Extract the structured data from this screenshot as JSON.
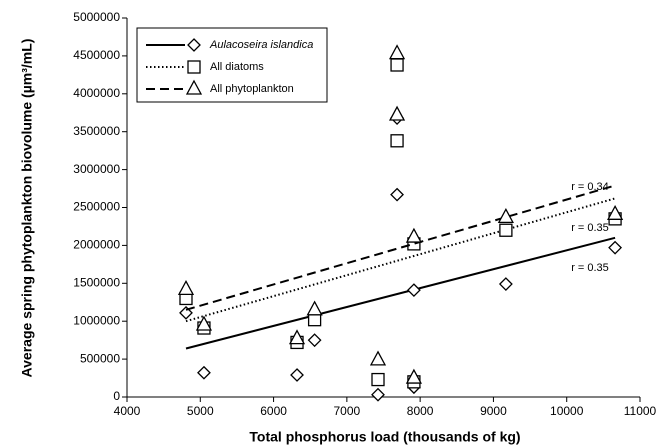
{
  "chart_data": {
    "type": "scatter",
    "x_label": "Total phosphorus load (thousands of kg)",
    "y_label": "Average spring phytoplankton biovolume (µm³/mL)",
    "xlim": [
      4000,
      11000
    ],
    "xticks": [
      4000,
      5000,
      6000,
      7000,
      8000,
      9000,
      10000,
      11000
    ],
    "ylim": [
      0,
      5000000
    ],
    "yticks": [
      0,
      500000,
      1000000,
      1500000,
      2000000,
      2500000,
      3000000,
      3500000,
      4000000,
      4500000,
      5000000
    ],
    "legend": "top-left",
    "series": [
      {
        "name": "Aulacoseira islandica",
        "marker": "diamond",
        "line": "solid",
        "color": "#000000",
        "x": [
          4805,
          5050,
          6320,
          6560,
          7425,
          7685,
          7685,
          7915,
          7915,
          9170,
          10660
        ],
        "values": [
          1110000,
          320000,
          290000,
          750000,
          30000,
          3680000,
          2670000,
          1410000,
          130000,
          1490000,
          1970000
        ],
        "trend": {
          "x": [
            4805,
            10660
          ],
          "y": [
            640000,
            2100000
          ],
          "label": "r = 0.35"
        }
      },
      {
        "name": "All diatoms",
        "marker": "square",
        "line": "dotted",
        "color": "#000000",
        "x": [
          4805,
          5050,
          6320,
          6560,
          7425,
          7685,
          7685,
          7915,
          7915,
          9170,
          10660
        ],
        "values": [
          1300000,
          910000,
          720000,
          1020000,
          230000,
          4380000,
          3380000,
          2020000,
          200000,
          2200000,
          2350000
        ],
        "trend": {
          "x": [
            4805,
            10660
          ],
          "y": [
            1000000,
            2620000
          ],
          "label": "r = 0.35"
        }
      },
      {
        "name": "All phytoplankton",
        "marker": "triangle",
        "line": "dashed",
        "color": "#000000",
        "x": [
          4805,
          5050,
          6320,
          6560,
          7425,
          7685,
          7685,
          7915,
          7915,
          9170,
          10660
        ],
        "values": [
          1420000,
          950000,
          770000,
          1150000,
          490000,
          4530000,
          3720000,
          2110000,
          250000,
          2370000,
          2410000
        ],
        "trend": {
          "x": [
            4805,
            10660
          ],
          "y": [
            1150000,
            2790000
          ],
          "label": "r = 0.34"
        }
      }
    ]
  }
}
